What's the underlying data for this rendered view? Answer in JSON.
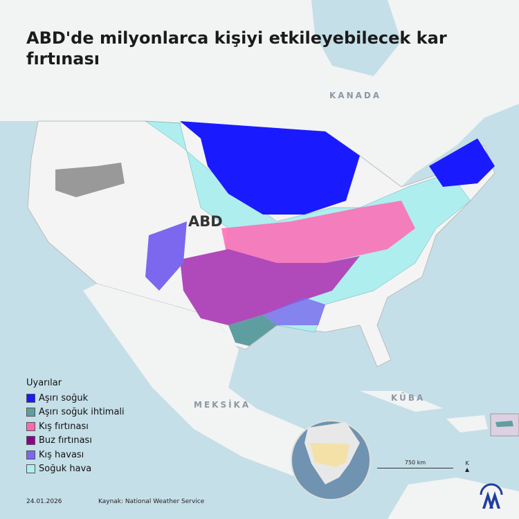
{
  "title": "ABD'de milyonlarca kişiyi etkileyebilecek kar fırtınası",
  "labels": {
    "canada": "KANADA",
    "usa": "ABD",
    "mexico": "MEKSİKA",
    "cuba": "KÜBA"
  },
  "legend": {
    "title": "Uyarılar",
    "items": [
      {
        "label": "Aşırı soğuk",
        "color": "#1a1aff"
      },
      {
        "label": "Aşırı soğuk ihtimali",
        "color": "#5f9ea0"
      },
      {
        "label": "Kış fırtınası",
        "color": "#ff69b4"
      },
      {
        "label": "Buz fırtınası",
        "color": "#8b008b"
      },
      {
        "label": "Kış havası",
        "color": "#7b68ee"
      },
      {
        "label": "Soğuk hava",
        "color": "#afeeee"
      }
    ]
  },
  "scale": {
    "label": "750 km"
  },
  "north": {
    "label": "K"
  },
  "footer": {
    "date": "24.01.2026",
    "source": "Kaynak: National Weather Service"
  },
  "logo": {
    "text": "AA",
    "color": "#1f3f9e"
  }
}
